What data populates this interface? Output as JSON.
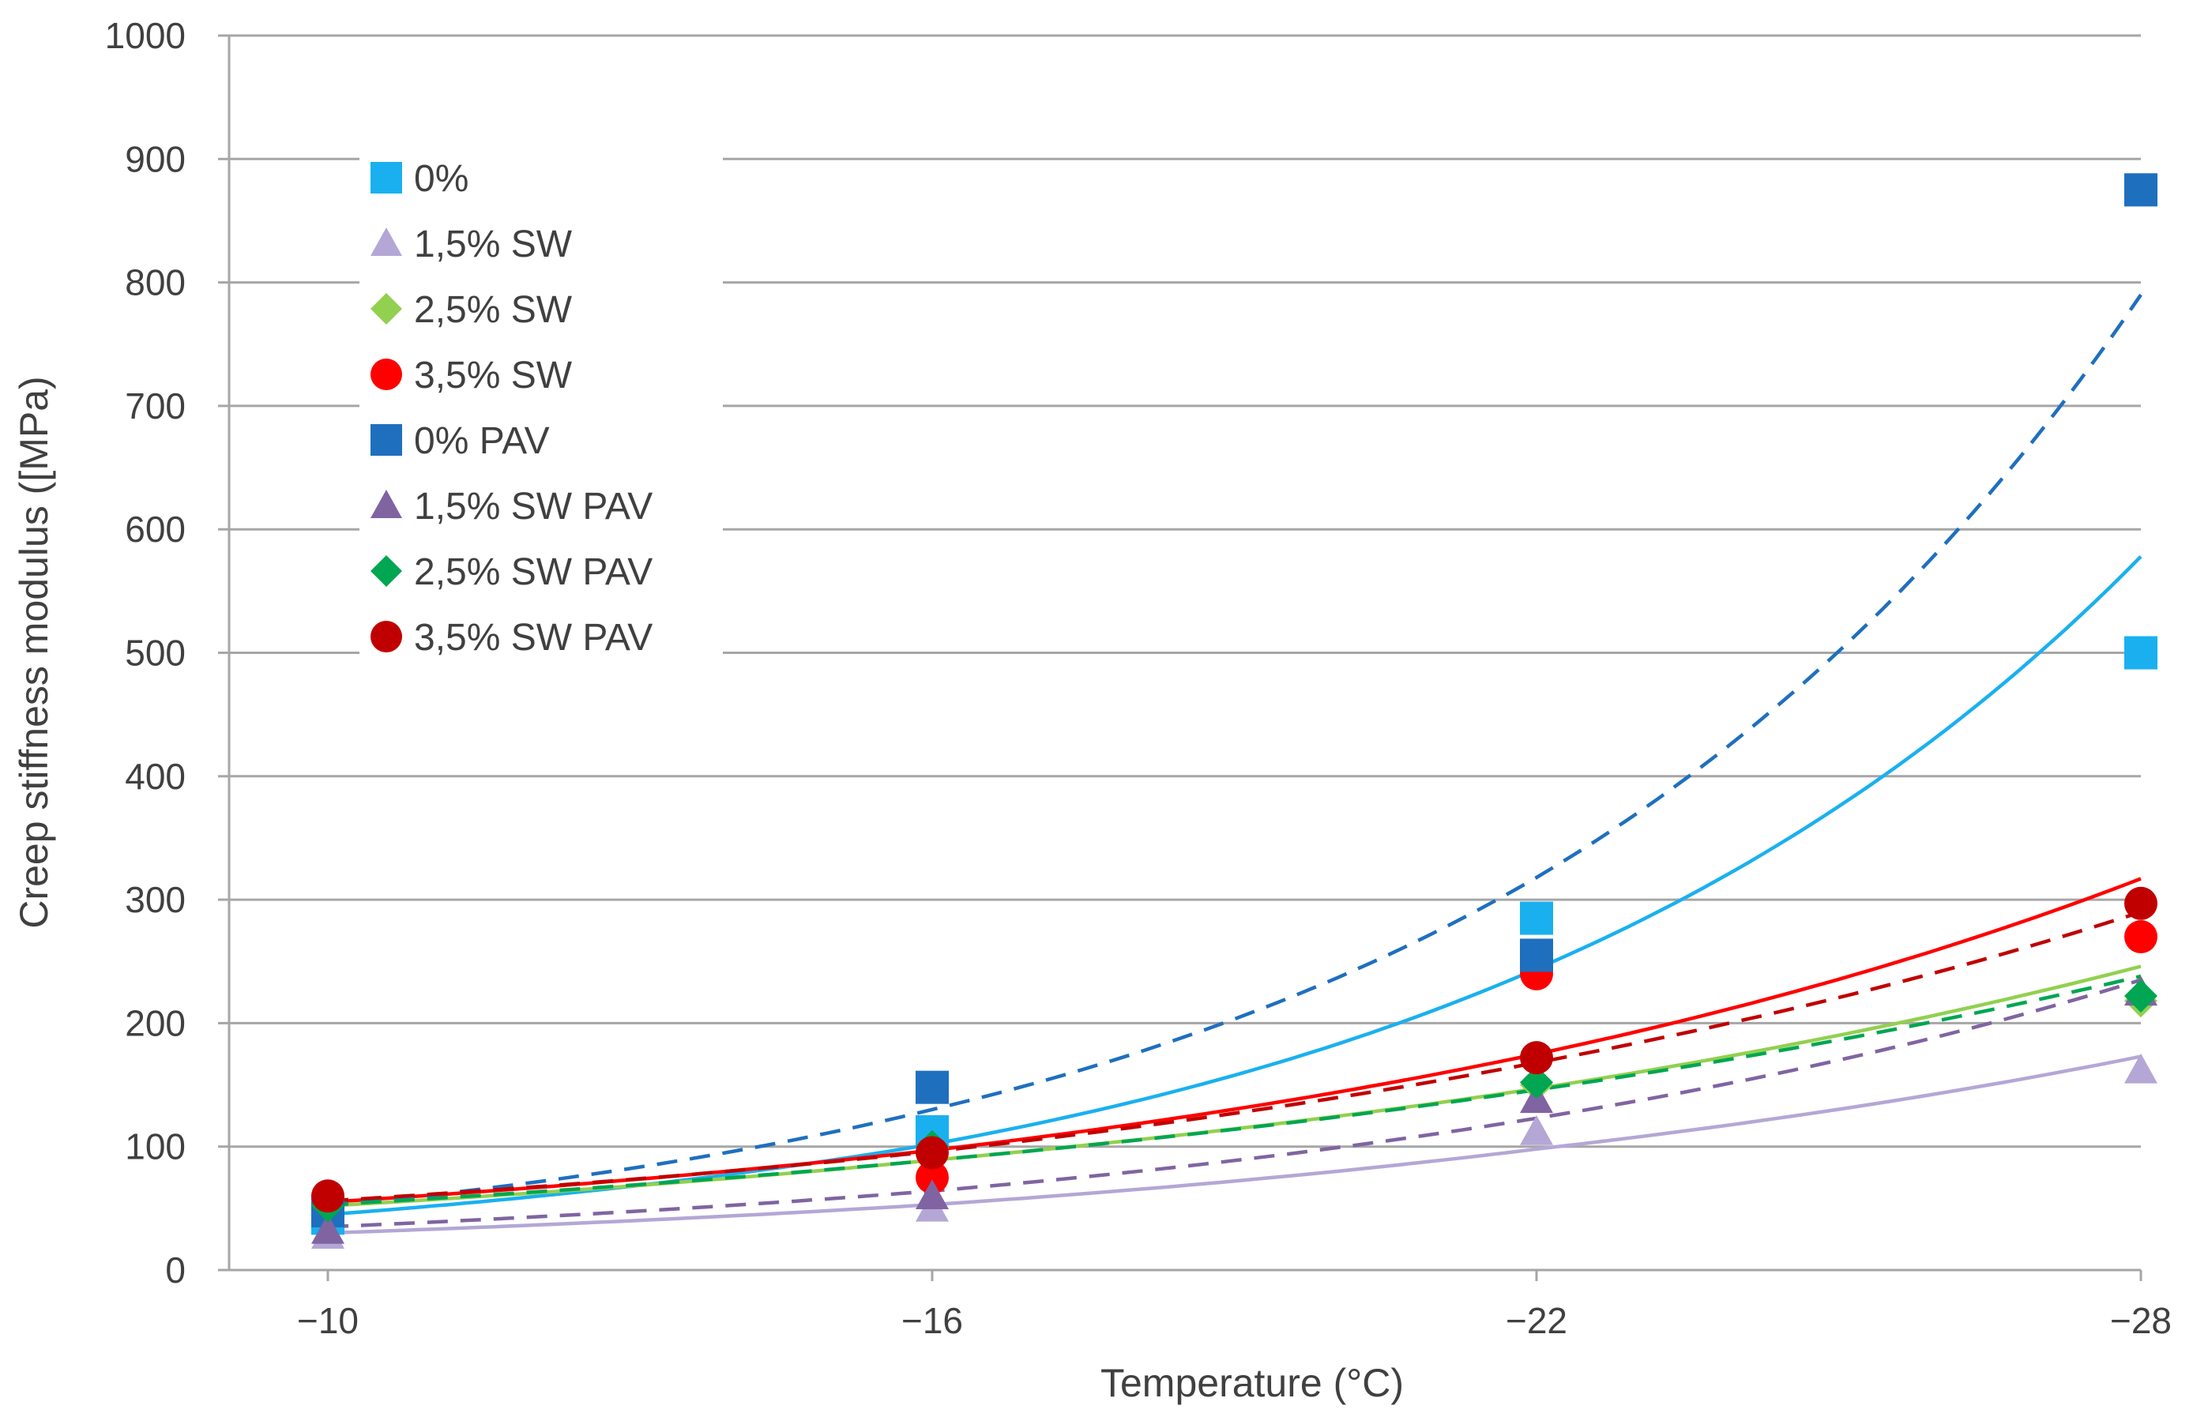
{
  "chart_data": {
    "type": "scatter",
    "xlabel": "Temperature (°C)",
    "ylabel": "Creep stiffness modulus ([MPa)",
    "categories": [
      "−10",
      "−16",
      "−22",
      "−28"
    ],
    "x": [
      -10,
      -16,
      -22,
      -28
    ],
    "ylim": [
      0,
      1000
    ],
    "yticks": [
      0,
      100,
      200,
      300,
      400,
      500,
      600,
      700,
      800,
      900,
      1000
    ],
    "grid": true,
    "legend_position": "top-left",
    "trendline_type": "exponential",
    "series": [
      {
        "name": "0%",
        "marker": "square",
        "color": "#1ab0ef",
        "line": "solid",
        "values": [
          42,
          112,
          285,
          500
        ],
        "trend": [
          45,
          102,
          244,
          578
        ]
      },
      {
        "name": "1,5% SW",
        "marker": "triangle",
        "color": "#b4a7d6",
        "line": "solid",
        "values": [
          28,
          50,
          112,
          162
        ],
        "trend": [
          30,
          53,
          98,
          173
        ]
      },
      {
        "name": "2,5% SW",
        "marker": "diamond",
        "color": "#92d050",
        "line": "solid",
        "values": [
          50,
          95,
          150,
          218
        ],
        "trend": [
          52,
          89,
          147,
          246
        ]
      },
      {
        "name": "3,5% SW",
        "marker": "circle",
        "color": "#ff0000",
        "line": "solid",
        "values": [
          55,
          75,
          240,
          270
        ],
        "trend": [
          55,
          97,
          175,
          317
        ]
      },
      {
        "name": "0% PAV",
        "marker": "square",
        "color": "#1f6fbf",
        "line": "dashed",
        "values": [
          48,
          148,
          255,
          875
        ],
        "trend": [
          52,
          130,
          318,
          790
        ]
      },
      {
        "name": "1,5% SW PAV",
        "marker": "triangle",
        "color": "#8064a2",
        "line": "dashed",
        "values": [
          32,
          60,
          138,
          225
        ],
        "trend": [
          35,
          64,
          123,
          235
        ]
      },
      {
        "name": "2,5% SW PAV",
        "marker": "diamond",
        "color": "#00a651",
        "line": "dashed",
        "values": [
          52,
          100,
          152,
          222
        ],
        "trend": [
          53,
          89,
          146,
          238
        ]
      },
      {
        "name": "3,5% SW PAV",
        "marker": "circle",
        "color": "#c00000",
        "line": "dashed",
        "values": [
          60,
          95,
          172,
          297
        ],
        "trend": [
          56,
          96,
          168,
          290
        ]
      }
    ]
  }
}
